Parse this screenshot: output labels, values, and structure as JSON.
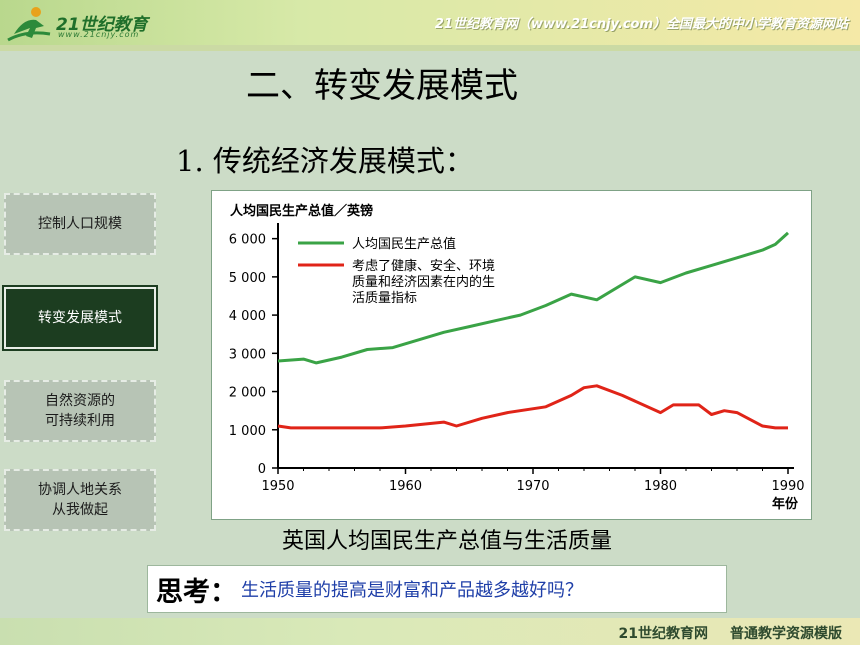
{
  "header": {
    "logo_text": "21世纪教育",
    "logo_url": "www.21cnjy.com",
    "banner": "21世纪教育网（www.21cnjy.com）全国最大的中小学教育资源网站"
  },
  "slide": {
    "title": "二、转变发展模式",
    "subtitle": "1.  传统经济发展模式："
  },
  "nav": {
    "items": [
      {
        "label": "控制人口规模",
        "active": false
      },
      {
        "label": "转变发展模式",
        "active": true
      },
      {
        "label": "自然资源的\n可持续利用",
        "active": false
      },
      {
        "label": "协调人地关系\n从我做起",
        "active": false
      }
    ]
  },
  "chart_data": {
    "type": "line",
    "ylabel": "人均国民生产总值／英镑",
    "xlabel": "年份",
    "ylim": [
      0,
      6200
    ],
    "xlim": [
      1950,
      1990
    ],
    "yticks": [
      0,
      1000,
      2000,
      3000,
      4000,
      5000,
      6000
    ],
    "ytick_labels": [
      "0",
      "1 000",
      "2 000",
      "3 000",
      "4 000",
      "5 000",
      "6 000"
    ],
    "xticks": [
      1950,
      1960,
      1970,
      1980,
      1990
    ],
    "xtick_labels": [
      "1950",
      "1960",
      "1970",
      "1980",
      "1990"
    ],
    "legend_position": "top-left",
    "series": [
      {
        "name": "人均国民生产总值",
        "color": "#3aa346",
        "x": [
          1950,
          1952,
          1953,
          1955,
          1957,
          1959,
          1961,
          1963,
          1965,
          1967,
          1969,
          1971,
          1973,
          1975,
          1977,
          1978,
          1980,
          1982,
          1984,
          1986,
          1988,
          1989,
          1990
        ],
        "y": [
          2800,
          2850,
          2750,
          2900,
          3100,
          3150,
          3350,
          3550,
          3700,
          3850,
          4000,
          4250,
          4550,
          4400,
          4800,
          5000,
          4850,
          5100,
          5300,
          5500,
          5700,
          5850,
          6150
        ]
      },
      {
        "name": "考虑了健康、安全、环境质量和经济因素在内的生活质量指标",
        "color": "#e02418",
        "x": [
          1950,
          1951,
          1955,
          1958,
          1960,
          1963,
          1964,
          1966,
          1968,
          1971,
          1973,
          1974,
          1975,
          1977,
          1980,
          1981,
          1983,
          1984,
          1985,
          1986,
          1988,
          1989,
          1990
        ],
        "y": [
          1100,
          1050,
          1050,
          1050,
          1100,
          1200,
          1100,
          1300,
          1450,
          1600,
          1900,
          2100,
          2150,
          1900,
          1450,
          1650,
          1650,
          1400,
          1500,
          1450,
          1100,
          1050,
          1050
        ]
      }
    ]
  },
  "chart_caption": "英国人均国民生产总值与生活质量",
  "think": {
    "label": "思考：",
    "question": "生活质量的提高是财富和产品越多越好吗？"
  },
  "footer": {
    "site": "21世纪教育网",
    "template": "普通教学资源模版"
  },
  "colors": {
    "background": "#ccdcc7",
    "active_nav": "#1c3d20",
    "question_text": "#1f3fa8"
  }
}
